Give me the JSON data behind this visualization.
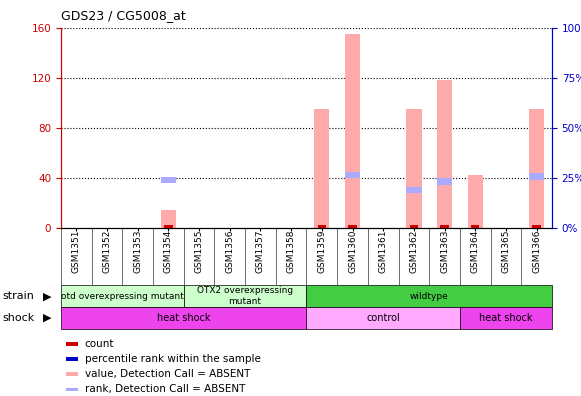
{
  "title": "GDS23 / CG5008_at",
  "samples": [
    "GSM1351",
    "GSM1352",
    "GSM1353",
    "GSM1354",
    "GSM1355",
    "GSM1356",
    "GSM1357",
    "GSM1358",
    "GSM1359",
    "GSM1360",
    "GSM1361",
    "GSM1362",
    "GSM1363",
    "GSM1364",
    "GSM1365",
    "GSM1366"
  ],
  "pink_bar_values": [
    0,
    0,
    0,
    14,
    0,
    0,
    0,
    0,
    95,
    155,
    0,
    95,
    118,
    42,
    0,
    95
  ],
  "blue_rect_positions": [
    0,
    0,
    0,
    38,
    0,
    0,
    0,
    0,
    0,
    42,
    0,
    30,
    37,
    0,
    0,
    41
  ],
  "red_bar_values": [
    0,
    0,
    0,
    1,
    0,
    0,
    0,
    0,
    1,
    1,
    0,
    1,
    1,
    1,
    0,
    1
  ],
  "ylim_left": [
    0,
    160
  ],
  "ylim_right": [
    0,
    100
  ],
  "yticks_left": [
    0,
    40,
    80,
    120,
    160
  ],
  "yticks_right": [
    0,
    25,
    50,
    75,
    100
  ],
  "left_axis_color": "#cc0000",
  "right_axis_color": "#0000cc",
  "pink_color": "#ffaaaa",
  "blue_rect_color": "#aaaaff",
  "red_bar_color": "#cc0000",
  "strain_groups": [
    {
      "label": "otd overexpressing mutant",
      "start": 0,
      "end": 4,
      "color": "#ccffcc"
    },
    {
      "label": "OTX2 overexpressing\nmutant",
      "start": 4,
      "end": 8,
      "color": "#ccffcc"
    },
    {
      "label": "wildtype",
      "start": 8,
      "end": 16,
      "color": "#44cc44"
    }
  ],
  "shock_groups": [
    {
      "label": "heat shock",
      "start": 0,
      "end": 8,
      "color": "#ee44ee"
    },
    {
      "label": "control",
      "start": 8,
      "end": 13,
      "color": "#ffaaff"
    },
    {
      "label": "heat shock",
      "start": 13,
      "end": 16,
      "color": "#ee44ee"
    }
  ],
  "legend_items": [
    {
      "color": "#cc0000",
      "label": "count"
    },
    {
      "color": "#0000cc",
      "label": "percentile rank within the sample"
    },
    {
      "color": "#ffaaaa",
      "label": "value, Detection Call = ABSENT"
    },
    {
      "color": "#aaaaff",
      "label": "rank, Detection Call = ABSENT"
    }
  ]
}
